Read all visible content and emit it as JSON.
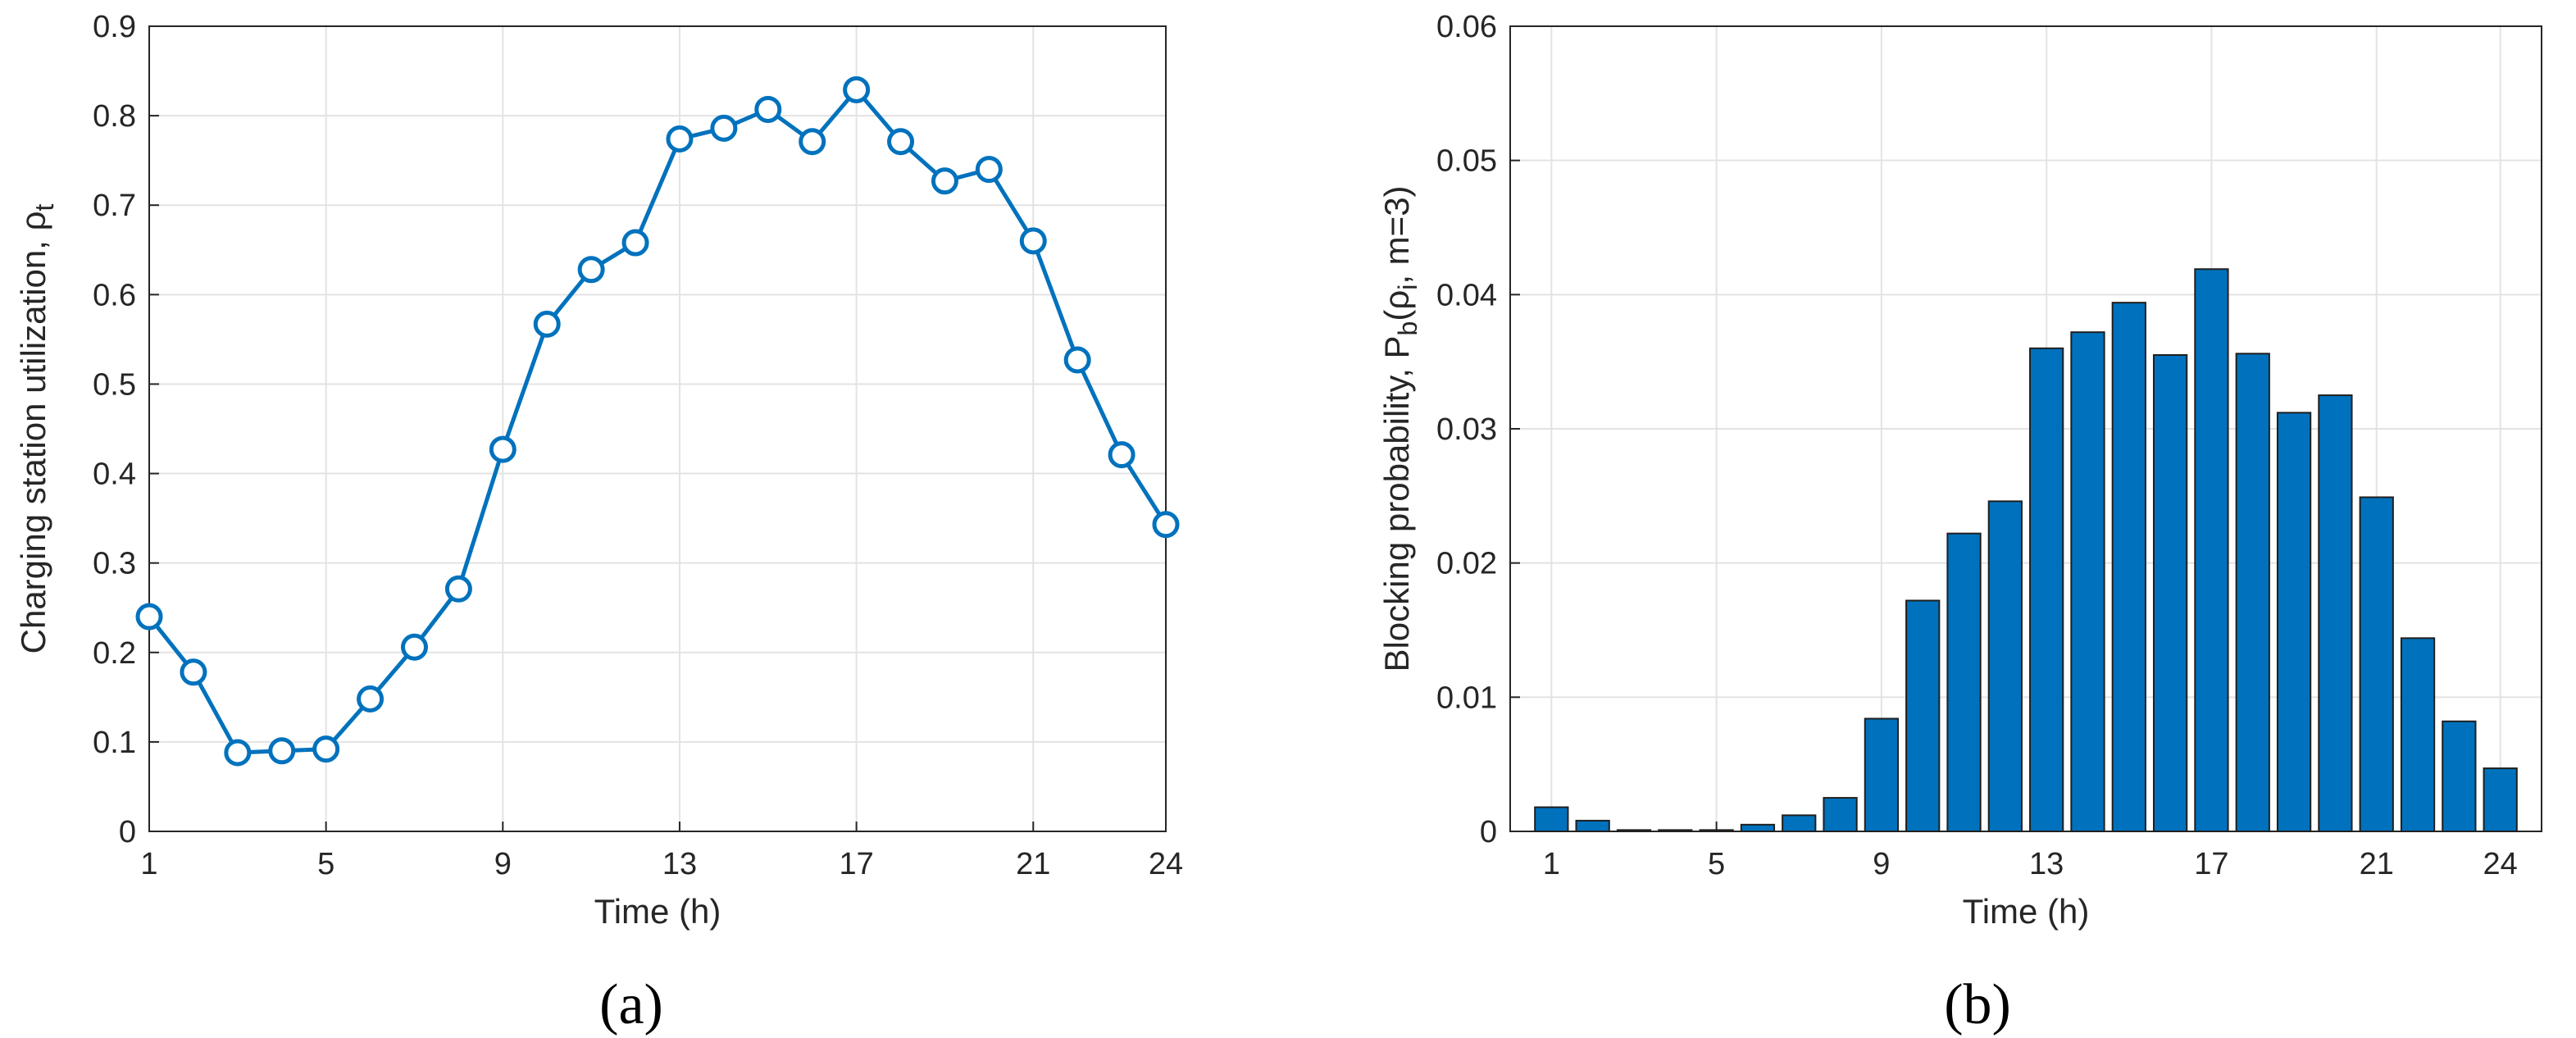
{
  "chart_data": [
    {
      "type": "line",
      "panel_label": "(a)",
      "xlabel": "Time (h)",
      "ylabel": "Charging station utilization, ρ",
      "ylabel_sub": "t",
      "xlim": [
        1,
        24
      ],
      "ylim": [
        0,
        0.9
      ],
      "xticks": [
        1,
        5,
        9,
        13,
        17,
        21,
        24
      ],
      "yticks": [
        0,
        0.1,
        0.2,
        0.3,
        0.4,
        0.5,
        0.6,
        0.7,
        0.8,
        0.9
      ],
      "grid": true,
      "color": "#0072BD",
      "marker": "circle",
      "x": [
        1,
        2,
        3,
        4,
        5,
        6,
        7,
        8,
        9,
        10,
        11,
        12,
        13,
        14,
        15,
        16,
        17,
        18,
        19,
        20,
        21,
        22,
        23,
        24
      ],
      "values": [
        0.24,
        0.178,
        0.088,
        0.09,
        0.092,
        0.148,
        0.206,
        0.271,
        0.427,
        0.567,
        0.628,
        0.658,
        0.774,
        0.786,
        0.807,
        0.771,
        0.829,
        0.771,
        0.727,
        0.74,
        0.66,
        0.527,
        0.421,
        0.343
      ]
    },
    {
      "type": "bar",
      "panel_label": "(b)",
      "xlabel": "Time (h)",
      "ylabel": "Blocking probability, P",
      "ylabel_sub": "b",
      "ylabel_tail": "(ρ",
      "ylabel_tail_sub": "i",
      "ylabel_end": ", m=3)",
      "xlim": [
        0,
        25
      ],
      "ylim": [
        0,
        0.06
      ],
      "xticks": [
        1,
        5,
        9,
        13,
        17,
        21,
        24
      ],
      "yticks": [
        0,
        0.01,
        0.02,
        0.03,
        0.04,
        0.05,
        0.06
      ],
      "grid": true,
      "color": "#0072BD",
      "x": [
        1,
        2,
        3,
        4,
        5,
        6,
        7,
        8,
        9,
        10,
        11,
        12,
        13,
        14,
        15,
        16,
        17,
        18,
        19,
        20,
        21,
        22,
        23,
        24
      ],
      "values": [
        0.0018,
        0.0008,
        0.0001,
        0.0001,
        0.0001,
        0.0005,
        0.0012,
        0.0025,
        0.0084,
        0.0172,
        0.0222,
        0.0246,
        0.036,
        0.0372,
        0.0394,
        0.0355,
        0.0419,
        0.0356,
        0.0312,
        0.0325,
        0.0249,
        0.0144,
        0.0082,
        0.0047
      ]
    }
  ]
}
